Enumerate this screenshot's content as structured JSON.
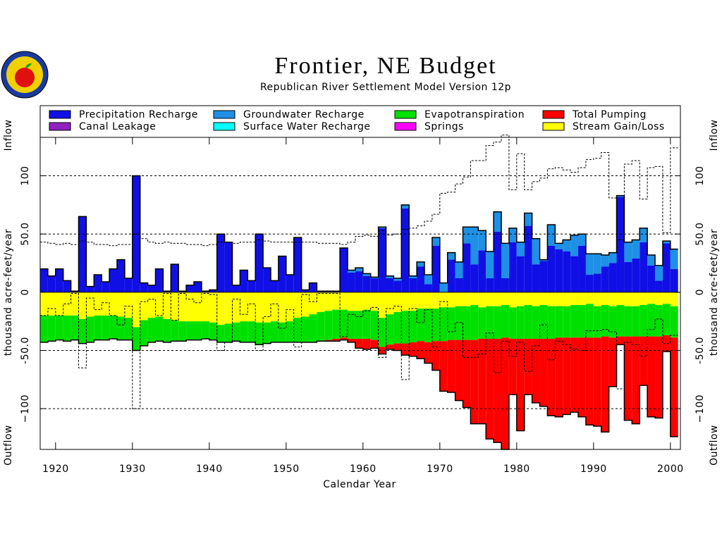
{
  "chart_data": {
    "type": "stacked-bar",
    "title": "Frontier, NE Budget",
    "subtitle": "Republican River Settlement Model Version 12p",
    "xlabel": "Calendar Year",
    "ylabel": "thousand acre-feet/year",
    "inflow_label": "Inflow",
    "outflow_label": "Outflow",
    "x": [
      1918,
      1919,
      1920,
      1921,
      1922,
      1923,
      1924,
      1925,
      1926,
      1927,
      1928,
      1929,
      1930,
      1931,
      1932,
      1933,
      1934,
      1935,
      1936,
      1937,
      1938,
      1939,
      1940,
      1941,
      1942,
      1943,
      1944,
      1945,
      1946,
      1947,
      1948,
      1949,
      1950,
      1951,
      1952,
      1953,
      1954,
      1955,
      1956,
      1957,
      1958,
      1959,
      1960,
      1961,
      1962,
      1963,
      1964,
      1965,
      1966,
      1967,
      1968,
      1969,
      1970,
      1971,
      1972,
      1973,
      1974,
      1975,
      1976,
      1977,
      1978,
      1979,
      1980,
      1981,
      1982,
      1983,
      1984,
      1985,
      1986,
      1987,
      1988,
      1989,
      1990,
      1991,
      1992,
      1993,
      1994,
      1995,
      1996,
      1997,
      1998,
      1999,
      2000
    ],
    "xlim": [
      1918,
      2001.3
    ],
    "xticks": [
      1920,
      1930,
      1940,
      1950,
      1960,
      1970,
      1980,
      1990,
      2000
    ],
    "ylim": [
      -135,
      133
    ],
    "yticks": [
      {
        "value": -100,
        "label": "−100"
      },
      {
        "value": -50,
        "label": "-50.0"
      },
      0,
      {
        "value": 50,
        "label": "50.0"
      },
      100
    ],
    "grid": true,
    "series": [
      {
        "name": "Precipitation Recharge",
        "color": "#1010e6",
        "values": [
          20,
          14,
          20,
          10,
          1,
          65,
          5,
          15,
          9,
          20,
          28,
          12,
          100,
          8,
          6,
          20,
          1,
          24,
          1,
          6,
          9,
          1,
          2,
          50,
          43,
          6,
          19,
          10,
          50,
          21,
          10,
          31,
          15,
          47,
          2,
          8,
          1,
          1,
          1,
          38,
          17,
          18,
          14,
          12,
          55,
          12,
          10,
          72,
          12,
          22,
          7,
          40,
          0,
          28,
          12,
          42,
          24,
          36,
          12,
          52,
          12,
          43,
          31,
          57,
          24,
          27,
          40,
          37,
          35,
          31,
          40,
          15,
          16,
          22,
          25,
          82,
          26,
          29,
          43,
          23,
          10,
          42,
          20
        ]
      },
      {
        "name": "Groundwater Recharge",
        "color": "#1e90e6",
        "values": [
          0,
          0,
          0,
          0,
          0,
          0,
          0,
          0,
          0,
          0,
          0,
          0,
          0,
          0,
          0,
          0,
          0,
          0,
          0,
          0,
          0,
          0,
          0,
          0,
          0,
          0,
          0,
          0,
          0,
          0,
          0,
          0,
          0,
          0,
          0,
          0,
          0,
          0,
          0,
          0,
          2,
          3,
          2,
          1,
          1,
          2,
          2,
          3,
          2,
          4,
          8,
          7,
          8,
          6,
          14,
          14,
          32,
          17,
          23,
          17,
          30,
          12,
          12,
          11,
          22,
          1,
          18,
          5,
          10,
          18,
          10,
          18,
          17,
          10,
          9,
          1,
          17,
          16,
          12,
          9,
          13,
          2,
          17
        ]
      },
      {
        "name": "Stream Gain/Loss",
        "color": "#ffff00",
        "values": [
          -20,
          -20,
          -20,
          -20,
          -20,
          -23,
          -21,
          -20,
          -20,
          -20,
          -21,
          -22,
          -30,
          -24,
          -22,
          -21,
          -23,
          -24,
          -25,
          -25,
          -25,
          -25,
          -26,
          -28,
          -27,
          -26,
          -25,
          -25,
          -26,
          -26,
          -25,
          -26,
          -25,
          -22,
          -21,
          -19,
          -17,
          -16,
          -15,
          -15,
          -16,
          -16,
          -15,
          -16,
          -22,
          -19,
          -17,
          -16,
          -16,
          -14,
          -14,
          -14,
          -13,
          -13,
          -12,
          -12,
          -11,
          -13,
          -12,
          -12,
          -11,
          -13,
          -12,
          -11,
          -12,
          -11,
          -12,
          -12,
          -12,
          -11,
          -11,
          -10,
          -12,
          -11,
          -12,
          -11,
          -12,
          -12,
          -11,
          -10,
          -11,
          -10,
          -12
        ]
      },
      {
        "name": "Evapotranspiration",
        "color": "#00e000",
        "values": [
          -23,
          -22,
          -21,
          -22,
          -21,
          -21,
          -22,
          -21,
          -21,
          -20,
          -20,
          -19,
          -20,
          -22,
          -21,
          -21,
          -20,
          -18,
          -17,
          -16,
          -16,
          -15,
          -15,
          -15,
          -16,
          -16,
          -18,
          -18,
          -19,
          -18,
          -18,
          -17,
          -18,
          -21,
          -22,
          -24,
          -25,
          -25,
          -25,
          -24,
          -24,
          -24,
          -25,
          -25,
          -25,
          -26,
          -27,
          -28,
          -27,
          -28,
          -29,
          -28,
          -29,
          -28,
          -29,
          -29,
          -30,
          -27,
          -28,
          -28,
          -28,
          -27,
          -28,
          -29,
          -28,
          -29,
          -28,
          -27,
          -27,
          -28,
          -28,
          -29,
          -27,
          -27,
          -27,
          -27,
          -26,
          -26,
          -27,
          -28,
          -27,
          -27,
          -27
        ]
      },
      {
        "name": "Total Pumping",
        "color": "#ff0000",
        "values": [
          0,
          0,
          0,
          0,
          0,
          0,
          0,
          0,
          0,
          0,
          0,
          0,
          0,
          0,
          0,
          0,
          0,
          0,
          0,
          0,
          0,
          0,
          0,
          0,
          0,
          0,
          0,
          0,
          0,
          0,
          0,
          0,
          0,
          0,
          0,
          0,
          0,
          -1,
          -2,
          -2,
          -3,
          -8,
          -9,
          -7,
          -6,
          -4,
          -6,
          -10,
          -12,
          -15,
          -18,
          -25,
          -43,
          -45,
          -52,
          -58,
          -72,
          -73,
          -86,
          -89,
          -96,
          -48,
          -79,
          -48,
          -55,
          -58,
          -66,
          -68,
          -66,
          -64,
          -68,
          -75,
          -76,
          -82,
          -42,
          -7,
          -72,
          -75,
          -42,
          -69,
          -70,
          -14,
          -85
        ]
      },
      {
        "name": "Canal Leakage",
        "color": "#9020c0"
      },
      {
        "name": "Surface Water Recharge",
        "color": "#00ffff"
      },
      {
        "name": "Springs",
        "color": "#ff00ff"
      }
    ]
  }
}
